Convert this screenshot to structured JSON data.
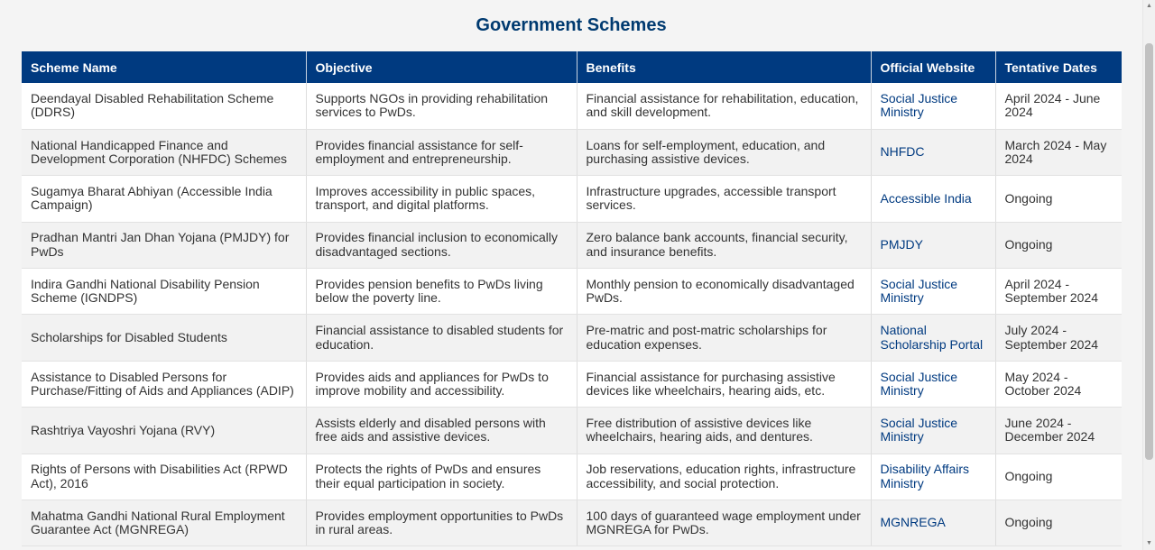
{
  "page": {
    "title": "Government Schemes"
  },
  "table": {
    "headers": [
      "Scheme Name",
      "Objective",
      "Benefits",
      "Official Website",
      "Tentative Dates"
    ],
    "rows": [
      {
        "name": "Deendayal Disabled Rehabilitation Scheme (DDRS)",
        "objective": "Supports NGOs in providing rehabilitation services to PwDs.",
        "benefits": "Financial assistance for rehabilitation, education, and skill development.",
        "website": "Social Justice Ministry",
        "dates": "April 2024 - June 2024"
      },
      {
        "name": "National Handicapped Finance and Development Corporation (NHFDC) Schemes",
        "objective": "Provides financial assistance for self-employment and entrepreneurship.",
        "benefits": "Loans for self-employment, education, and purchasing assistive devices.",
        "website": "NHFDC",
        "dates": "March 2024 - May 2024"
      },
      {
        "name": "Sugamya Bharat Abhiyan (Accessible India Campaign)",
        "objective": "Improves accessibility in public spaces, transport, and digital platforms.",
        "benefits": "Infrastructure upgrades, accessible transport services.",
        "website": "Accessible India",
        "dates": "Ongoing"
      },
      {
        "name": "Pradhan Mantri Jan Dhan Yojana (PMJDY) for PwDs",
        "objective": "Provides financial inclusion to economically disadvantaged sections.",
        "benefits": "Zero balance bank accounts, financial security, and insurance benefits.",
        "website": "PMJDY",
        "dates": "Ongoing"
      },
      {
        "name": "Indira Gandhi National Disability Pension Scheme (IGNDPS)",
        "objective": "Provides pension benefits to PwDs living below the poverty line.",
        "benefits": "Monthly pension to economically disadvantaged PwDs.",
        "website": "Social Justice Ministry",
        "dates": "April 2024 - September 2024"
      },
      {
        "name": "Scholarships for Disabled Students",
        "objective": "Financial assistance to disabled students for education.",
        "benefits": "Pre-matric and post-matric scholarships for education expenses.",
        "website": "National Scholarship Portal",
        "dates": "July 2024 - September 2024"
      },
      {
        "name": "Assistance to Disabled Persons for Purchase/Fitting of Aids and Appliances (ADIP)",
        "objective": "Provides aids and appliances for PwDs to improve mobility and accessibility.",
        "benefits": "Financial assistance for purchasing assistive devices like wheelchairs, hearing aids, etc.",
        "website": "Social Justice Ministry",
        "dates": "May 2024 - October 2024"
      },
      {
        "name": "Rashtriya Vayoshri Yojana (RVY)",
        "objective": "Assists elderly and disabled persons with free aids and assistive devices.",
        "benefits": "Free distribution of assistive devices like wheelchairs, hearing aids, and dentures.",
        "website": "Social Justice Ministry",
        "dates": "June 2024 - December 2024"
      },
      {
        "name": "Rights of Persons with Disabilities Act (RPWD Act), 2016",
        "objective": "Protects the rights of PwDs and ensures their equal participation in society.",
        "benefits": "Job reservations, education rights, infrastructure accessibility, and social protection.",
        "website": "Disability Affairs Ministry",
        "dates": "Ongoing"
      },
      {
        "name": "Mahatma Gandhi National Rural Employment Guarantee Act (MGNREGA)",
        "objective": "Provides employment opportunities to PwDs in rural areas.",
        "benefits": "100 days of guaranteed wage employment under MGNREGA for PwDs.",
        "website": "MGNREGA",
        "dates": "Ongoing"
      }
    ]
  },
  "colors": {
    "header_bg": "#003a80",
    "title": "#003a70",
    "link": "#003a80"
  }
}
